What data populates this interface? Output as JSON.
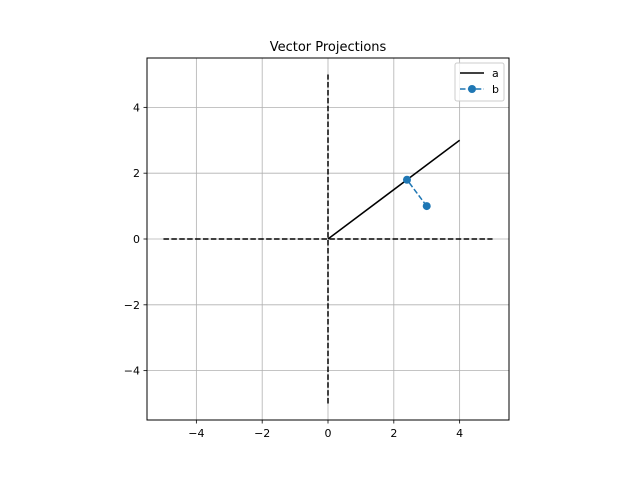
{
  "chart_data": {
    "type": "line",
    "title": "Vector Projections",
    "xlabel": "",
    "ylabel": "",
    "xlim": [
      -5.5,
      5.5
    ],
    "ylim": [
      -5.5,
      5.5
    ],
    "xticks": [
      -4,
      -2,
      0,
      2,
      4
    ],
    "yticks": [
      -4,
      -2,
      0,
      2,
      4
    ],
    "xtick_labels": [
      "−4",
      "−2",
      "0",
      "2",
      "4"
    ],
    "ytick_labels": [
      "−4",
      "−2",
      "0",
      "2",
      "4"
    ],
    "grid": true,
    "legend_position": "top-right",
    "axis_lines": [
      {
        "x": [
          -5,
          5
        ],
        "y": [
          0,
          0
        ],
        "style": "dashed",
        "color": "#000000"
      },
      {
        "x": [
          0,
          0
        ],
        "y": [
          -5,
          5
        ],
        "style": "dashed",
        "color": "#000000"
      }
    ],
    "series": [
      {
        "name": "a",
        "x": [
          0,
          4
        ],
        "y": [
          0,
          3
        ],
        "style": "solid",
        "color": "#000000",
        "marker": "none"
      },
      {
        "name": "b",
        "x": [
          3,
          2.4
        ],
        "y": [
          1,
          1.8
        ],
        "style": "dashed",
        "color": "#1f77b4",
        "marker": "circle"
      }
    ]
  }
}
